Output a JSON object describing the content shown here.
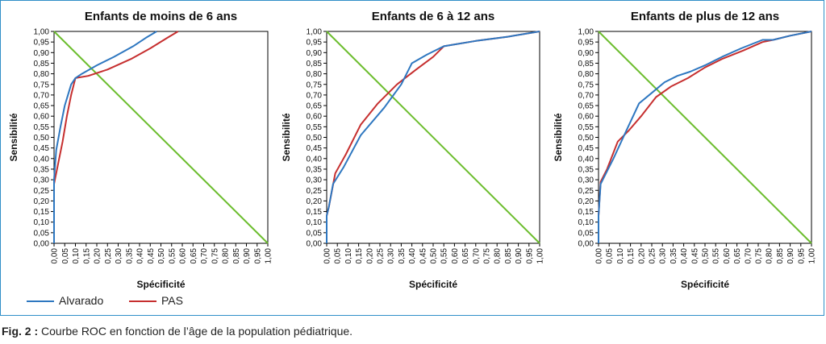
{
  "legend": {
    "alvarado": "Alvarado",
    "pas": "PAS"
  },
  "colors": {
    "alvarado": "#2e77c0",
    "pas": "#c62f2f",
    "diagonal": "#6cbd2e",
    "frame": "#2f8fc8",
    "axis": "#000000"
  },
  "caption": {
    "label": "Fig. 2 :",
    "text": "Courbe ROC en fonction de l’âge de la population pédiatrique."
  },
  "chart_data": [
    {
      "type": "line",
      "title": "Enfants de moins de 6 ans",
      "xlabel": "Spécificité",
      "ylabel": "Sensibilité",
      "xlim": [
        0,
        1
      ],
      "ylim": [
        0,
        1
      ],
      "xticks": [
        "0,00",
        "0,05",
        "0,10",
        "0,15",
        "0,20",
        "0,25",
        "0,30",
        "0,35",
        "0,40",
        "0,45",
        "0,50",
        "0,55",
        "0,60",
        "0,65",
        "0,70",
        "0,75",
        "0,80",
        "0,85",
        "0,90",
        "0,95",
        "1,00"
      ],
      "yticks": [
        "0,00",
        "0,05",
        "0,10",
        "0,15",
        "0,20",
        "0,25",
        "0,30",
        "0,35",
        "0,40",
        "0,45",
        "0,50",
        "0,55",
        "0,60",
        "0,65",
        "0,70",
        "0,75",
        "0,80",
        "0,85",
        "0,90",
        "0,95",
        "1,00"
      ],
      "grid": false,
      "series": [
        {
          "name": "Alvarado",
          "x": [
            0,
            0,
            0.01,
            0.03,
            0.05,
            0.08,
            0.1,
            0.13,
            0.2,
            0.28,
            0.37,
            0.43,
            0.48
          ],
          "y": [
            0,
            0.3,
            0.44,
            0.55,
            0.65,
            0.75,
            0.78,
            0.8,
            0.84,
            0.88,
            0.93,
            0.97,
            1.0
          ]
        },
        {
          "name": "PAS",
          "x": [
            0,
            0,
            0.02,
            0.04,
            0.06,
            0.08,
            0.1,
            0.16,
            0.25,
            0.36,
            0.45,
            0.53,
            0.58
          ],
          "y": [
            0,
            0.28,
            0.38,
            0.48,
            0.6,
            0.7,
            0.78,
            0.79,
            0.82,
            0.87,
            0.92,
            0.97,
            1.0
          ]
        },
        {
          "x": [
            0,
            1
          ],
          "y": [
            1,
            0
          ]
        }
      ]
    },
    {
      "type": "line",
      "title": "Enfants de 6 à 12 ans",
      "xlabel": "Spécificité",
      "ylabel": "Sensibilité",
      "xlim": [
        0,
        1
      ],
      "ylim": [
        0,
        1
      ],
      "xticks": [
        "0,00",
        "0,05",
        "0,10",
        "0,15",
        "0,20",
        "0,25",
        "0,30",
        "0,35",
        "0,40",
        "0,45",
        "0,50",
        "0,55",
        "0,60",
        "0,65",
        "0,70",
        "0,75",
        "0,80",
        "0,85",
        "0,90",
        "0,95",
        "1,00"
      ],
      "yticks": [
        "0,00",
        "0,05",
        "0,10",
        "0,15",
        "0,20",
        "0,25",
        "0,30",
        "0,35",
        "0,40",
        "0,45",
        "0,50",
        "0,55",
        "0,60",
        "0,65",
        "0,70",
        "0,75",
        "0,80",
        "0,85",
        "0,90",
        "0,95",
        "1,00"
      ],
      "grid": false,
      "series": [
        {
          "name": "Alvarado",
          "x": [
            0,
            0,
            0.01,
            0.03,
            0.08,
            0.16,
            0.27,
            0.35,
            0.4,
            0.47,
            0.55,
            0.7,
            0.85,
            1.0
          ],
          "y": [
            0,
            0.13,
            0.17,
            0.28,
            0.36,
            0.51,
            0.64,
            0.75,
            0.85,
            0.89,
            0.93,
            0.955,
            0.975,
            1.0
          ]
        },
        {
          "name": "PAS",
          "x": [
            0,
            0,
            0.01,
            0.04,
            0.09,
            0.16,
            0.24,
            0.33,
            0.42,
            0.5,
            0.55,
            0.7,
            0.85,
            1.0
          ],
          "y": [
            0,
            0.13,
            0.17,
            0.33,
            0.42,
            0.56,
            0.66,
            0.75,
            0.82,
            0.88,
            0.93,
            0.955,
            0.975,
            1.0
          ]
        },
        {
          "x": [
            0,
            1
          ],
          "y": [
            1,
            0
          ]
        }
      ]
    },
    {
      "type": "line",
      "title": "Enfants de plus de 12 ans",
      "xlabel": "Spécificité",
      "ylabel": "Sensibilité",
      "xlim": [
        0,
        1
      ],
      "ylim": [
        0,
        1
      ],
      "xticks": [
        "0,00",
        "0,05",
        "0,10",
        "0,15",
        "0,20",
        "0,25",
        "0,30",
        "0,35",
        "0,40",
        "0,45",
        "0,50",
        "0,55",
        "0,60",
        "0,65",
        "0,70",
        "0,75",
        "0,80",
        "0,85",
        "0,90",
        "0,95",
        "1,00"
      ],
      "yticks": [
        "0,00",
        "0,05",
        "0,10",
        "0,15",
        "0,20",
        "0,25",
        "0,30",
        "0,35",
        "0,40",
        "0,45",
        "0,50",
        "0,55",
        "0,60",
        "0,65",
        "0,70",
        "0,75",
        "0,80",
        "0,85",
        "0,90",
        "0,95",
        "1,00"
      ],
      "grid": false,
      "series": [
        {
          "name": "Alvarado",
          "x": [
            0,
            0,
            0.01,
            0.03,
            0.07,
            0.13,
            0.19,
            0.25,
            0.31,
            0.37,
            0.43,
            0.5,
            0.58,
            0.67,
            0.77,
            0.82,
            0.9,
            1.0
          ],
          "y": [
            0,
            0.13,
            0.28,
            0.32,
            0.4,
            0.53,
            0.66,
            0.71,
            0.76,
            0.79,
            0.81,
            0.84,
            0.88,
            0.92,
            0.96,
            0.96,
            0.98,
            1.0
          ]
        },
        {
          "name": "PAS",
          "x": [
            0,
            0,
            0.01,
            0.04,
            0.09,
            0.14,
            0.2,
            0.27,
            0.34,
            0.42,
            0.5,
            0.58,
            0.68,
            0.77,
            0.82,
            0.9,
            1.0
          ],
          "y": [
            0,
            0.13,
            0.29,
            0.35,
            0.48,
            0.53,
            0.6,
            0.69,
            0.74,
            0.78,
            0.83,
            0.87,
            0.91,
            0.95,
            0.96,
            0.98,
            1.0
          ]
        },
        {
          "x": [
            0,
            1
          ],
          "y": [
            1,
            0
          ]
        }
      ]
    }
  ]
}
